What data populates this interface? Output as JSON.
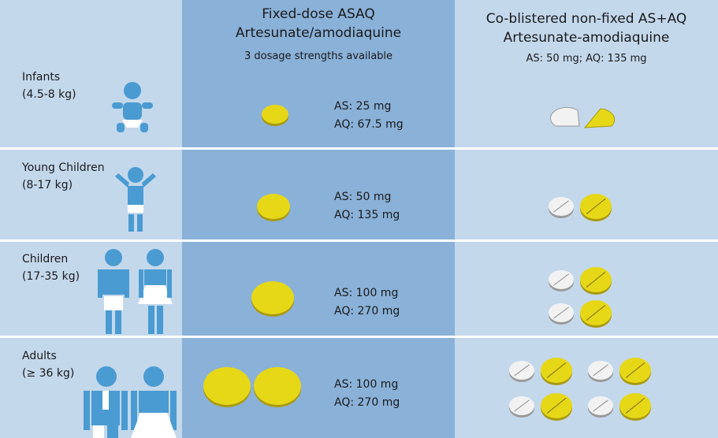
{
  "header": {
    "columns": [
      {
        "title": "Fixed-dose ASAQ",
        "subtitle": "Artesunate/amodiaquine",
        "note": "3 dosage strengths available"
      },
      {
        "title": "Co-blistered non-fixed AS+AQ",
        "subtitle": "Artesunate-amodiaquine",
        "note": "AS: 50 mg; AQ: 135 mg"
      }
    ]
  },
  "rows": [
    {
      "group": "Infants",
      "weight": "(4.5-8 kg)",
      "fixed_dose": [
        "AS: 25 mg",
        "AQ: 67.5 mg"
      ]
    },
    {
      "group": "Young Children",
      "weight": "(8-17 kg)",
      "fixed_dose": [
        "AS: 50 mg",
        "AQ: 135 mg"
      ]
    },
    {
      "group": "Children",
      "weight": "(17-35 kg)",
      "fixed_dose": [
        "AS: 100 mg",
        "AQ: 270 mg"
      ]
    },
    {
      "group": "Adults",
      "weight": "(≥ 36 kg)",
      "fixed_dose": [
        "AS: 100 mg",
        "AQ: 270 mg"
      ]
    }
  ]
}
